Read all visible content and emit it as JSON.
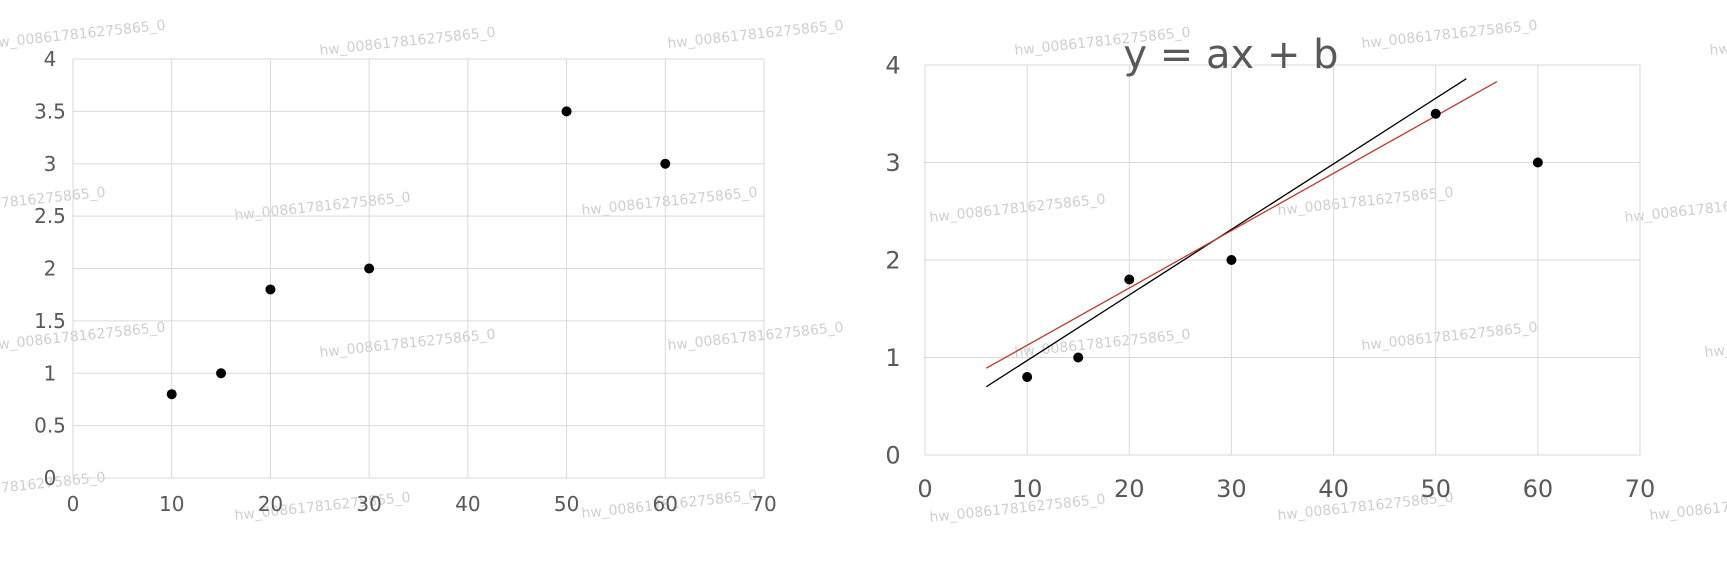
{
  "chart_data": [
    {
      "type": "scatter",
      "title": "",
      "xlabel": "",
      "ylabel": "",
      "xlim": [
        0,
        70
      ],
      "ylim": [
        0,
        4
      ],
      "grid": true,
      "xticks": [
        "0",
        "10",
        "20",
        "30",
        "40",
        "50",
        "60",
        "70"
      ],
      "yticks": [
        "0",
        "0.5",
        "1",
        "1.5",
        "2",
        "2.5",
        "3",
        "3.5",
        "4"
      ],
      "series": [
        {
          "x": [
            10,
            15,
            20,
            30,
            50,
            60
          ],
          "y": [
            0.8,
            1.0,
            1.8,
            2.0,
            3.5,
            3.0
          ]
        }
      ]
    },
    {
      "type": "scatter",
      "title": "y = ax + b",
      "xlabel": "",
      "ylabel": "",
      "xlim": [
        0,
        70
      ],
      "ylim": [
        0,
        4
      ],
      "grid": true,
      "xticks": [
        "0",
        "10",
        "20",
        "30",
        "40",
        "50",
        "60",
        "70"
      ],
      "yticks": [
        "0",
        "1",
        "2",
        "3",
        "4"
      ],
      "series": [
        {
          "x": [
            10,
            15,
            20,
            30,
            50,
            60
          ],
          "y": [
            0.8,
            1.0,
            1.8,
            2.0,
            3.5,
            3.0
          ]
        }
      ],
      "lines": [
        {
          "color": "#000000",
          "x": [
            6,
            53
          ],
          "y": [
            0.7,
            3.86
          ]
        },
        {
          "color": "#c0392b",
          "x": [
            6,
            56
          ],
          "y": [
            0.89,
            3.83
          ]
        }
      ]
    }
  ],
  "watermark": "hw_008617816275865_0"
}
